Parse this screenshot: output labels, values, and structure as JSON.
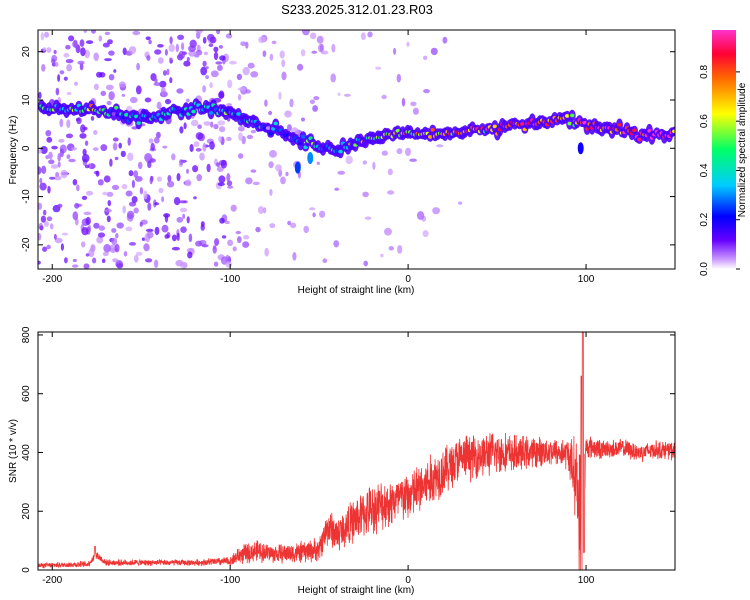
{
  "title": "S233.2025.312.01.23.R03",
  "chart_data": [
    {
      "type": "heatmap",
      "name": "spectrogram",
      "xlabel": "Height of straight line (km)",
      "ylabel": "Frequency (Hz)",
      "xlim": [
        -208,
        150
      ],
      "ylim": [
        -25,
        24.5
      ],
      "xticks": [
        -200,
        -100,
        0,
        100
      ],
      "yticks": [
        20,
        10,
        0,
        -10,
        -20
      ],
      "colorbar": {
        "label": "Normalized spectral amplitude",
        "range": [
          0,
          0.97
        ],
        "ticks": [
          "0.0",
          "0.2",
          "0.4",
          "0.6",
          "0.8"
        ],
        "colors": [
          "#ffffff",
          "#cc99ff",
          "#6600ff",
          "#0000ff",
          "#00ccff",
          "#00ff66",
          "#ffff00",
          "#ff6600",
          "#ff0033",
          "#ff33cc"
        ]
      },
      "ridge": {
        "x": [
          -205,
          -190,
          -178,
          -165,
          -150,
          -135,
          -120,
          -105,
          -95,
          -85,
          -75,
          -65,
          -55,
          -45,
          -38,
          -30,
          -20,
          -10,
          0,
          10,
          20,
          30,
          40,
          50,
          60,
          70,
          80,
          88,
          92,
          100,
          110,
          120,
          130,
          140,
          150
        ],
        "freq": [
          8,
          8,
          8,
          7,
          6,
          7,
          8,
          8,
          7,
          5,
          4,
          2,
          1,
          0,
          0,
          1,
          2,
          3,
          3,
          3,
          3,
          3.5,
          4,
          4,
          4.5,
          5,
          5.5,
          6,
          6,
          4.5,
          4,
          3.5,
          3,
          3,
          3
        ],
        "amp": [
          0.3,
          0.4,
          0.5,
          0.4,
          0.3,
          0.4,
          0.4,
          0.3,
          0.3,
          0.3,
          0.35,
          0.3,
          0.35,
          0.3,
          0.4,
          0.45,
          0.5,
          0.55,
          0.6,
          0.7,
          0.7,
          0.75,
          0.7,
          0.75,
          0.7,
          0.75,
          0.8,
          0.7,
          0.5,
          0.85,
          0.9,
          0.9,
          0.95,
          0.95,
          0.95
        ]
      }
    },
    {
      "type": "line",
      "name": "snr",
      "xlabel": "Height of straight line (km)",
      "ylabel": "SNR (10 * v/v)",
      "xlim": [
        -208,
        150
      ],
      "ylim": [
        0,
        810
      ],
      "xticks": [
        -200,
        -100,
        0,
        100
      ],
      "yticks": [
        0,
        200,
        400,
        600,
        800
      ],
      "color": "#ee3333",
      "envelope": {
        "x": [
          -208,
          -180,
          -175,
          -170,
          -150,
          -120,
          -100,
          -95,
          -85,
          -75,
          -60,
          -50,
          -45,
          -40,
          -30,
          -20,
          -10,
          0,
          10,
          20,
          30,
          40,
          50,
          60,
          70,
          80,
          90,
          95,
          97,
          98,
          100,
          110,
          120,
          130,
          140,
          150
        ],
        "mean": [
          15,
          20,
          50,
          25,
          25,
          25,
          30,
          50,
          65,
          55,
          60,
          70,
          150,
          120,
          170,
          210,
          230,
          250,
          290,
          340,
          380,
          390,
          400,
          395,
          400,
          405,
          395,
          300,
          100,
          50,
          420,
          410,
          415,
          400,
          410,
          405
        ],
        "spread": [
          8,
          10,
          15,
          10,
          10,
          10,
          15,
          30,
          35,
          30,
          35,
          40,
          60,
          60,
          70,
          80,
          80,
          80,
          85,
          80,
          75,
          70,
          70,
          60,
          50,
          45,
          50,
          150,
          300,
          350,
          40,
          30,
          30,
          30,
          30,
          30
        ]
      }
    }
  ]
}
